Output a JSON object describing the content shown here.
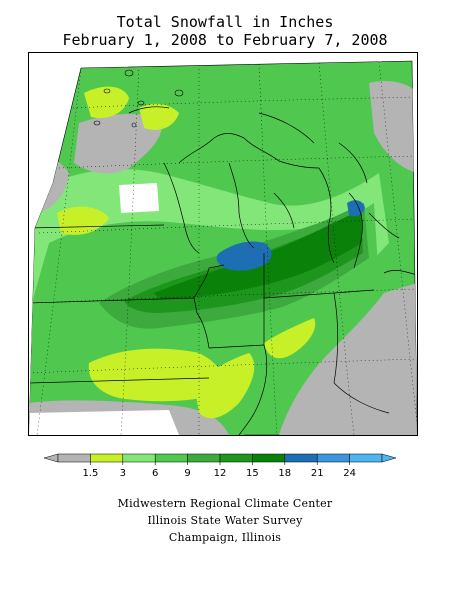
{
  "title": {
    "line1": "Total Snowfall in Inches",
    "line2": "February 1, 2008 to February 7, 2008"
  },
  "legend": {
    "ticks": [
      "1.5",
      "3",
      "6",
      "9",
      "12",
      "15",
      "18",
      "21",
      "24"
    ],
    "colors": [
      "#b4b4b4",
      "#c8f028",
      "#82e678",
      "#50c850",
      "#3caa3c",
      "#1e961e",
      "#0a820a",
      "#1e6eb4",
      "#3c96dc",
      "#50b4f0"
    ]
  },
  "map_colors": {
    "background": "#ffffff",
    "grid": "#000000",
    "boundary": "#000000"
  },
  "credits": {
    "line1": "Midwestern Regional Climate Center",
    "line2": "Illinois State Water Survey",
    "line3": "Champaign, Illinois"
  }
}
